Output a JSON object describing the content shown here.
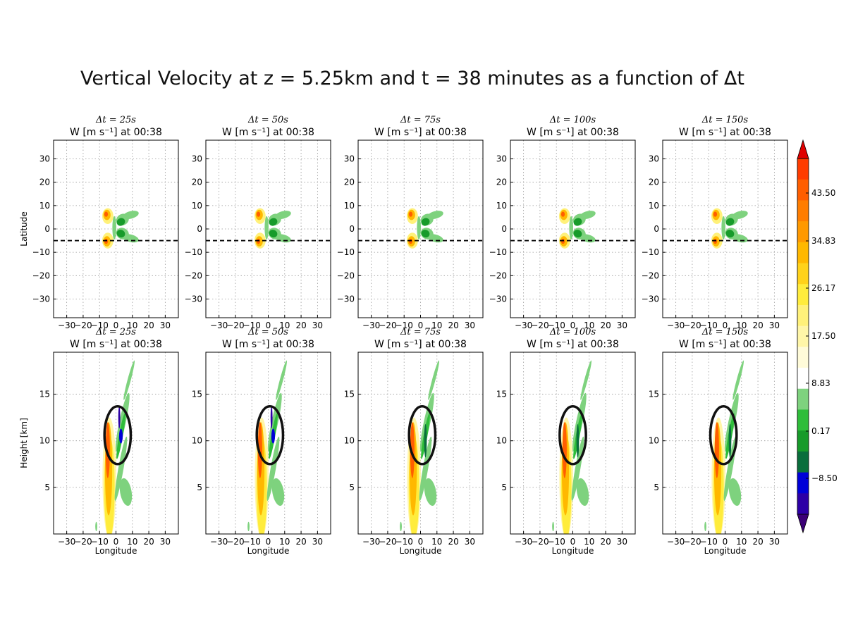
{
  "title": "Vertical Velocity at z = 5.25km and  t = 38 minutes as a function of Δt",
  "colors": {
    "levels": [
      "#3b0076",
      "#2d00a6",
      "#0000d8",
      "#0a6e3c",
      "#179b2a",
      "#2ebd3a",
      "#7ed27e",
      "#ffffff",
      "#fffbd9",
      "#fff6a8",
      "#fff17a",
      "#ffec3c",
      "#ffd21a",
      "#ffb800",
      "#ff9900",
      "#ff7d00",
      "#ff5e00",
      "#ff3c00",
      "#e00000"
    ],
    "circle": "#111111",
    "dash": "#000000"
  },
  "chart_data": [
    {
      "type": "heatmap",
      "row": "top",
      "subtitle": "Δt = 25s",
      "title": "W [m s⁻¹] at 00:38",
      "xlabel": "",
      "ylabel": "Latitude",
      "xlim": [
        -38,
        38
      ],
      "ylim": [
        -38,
        38
      ],
      "xticks": [
        "−30",
        "−20",
        "−10",
        "0",
        "10",
        "20",
        "30"
      ],
      "yticks": [
        "30",
        "20",
        "10",
        "0",
        "−10",
        "−20",
        "−30"
      ],
      "grid": true,
      "dashed_line_y": -5
    },
    {
      "type": "heatmap",
      "row": "top",
      "subtitle": "Δt = 50s",
      "title": "W [m s⁻¹] at 00:38",
      "xlabel": "",
      "ylabel": "",
      "xlim": [
        -38,
        38
      ],
      "ylim": [
        -38,
        38
      ],
      "xticks": [
        "−30",
        "−20",
        "−10",
        "0",
        "10",
        "20",
        "30"
      ],
      "yticks": [
        "30",
        "20",
        "10",
        "0",
        "−10",
        "−20",
        "−30"
      ],
      "grid": true,
      "dashed_line_y": -5
    },
    {
      "type": "heatmap",
      "row": "top",
      "subtitle": "Δt = 75s",
      "title": "W [m s⁻¹] at 00:38",
      "xlabel": "",
      "ylabel": "",
      "xlim": [
        -38,
        38
      ],
      "ylim": [
        -38,
        38
      ],
      "xticks": [
        "−30",
        "−20",
        "−10",
        "0",
        "10",
        "20",
        "30"
      ],
      "yticks": [
        "30",
        "20",
        "10",
        "0",
        "−10",
        "−20",
        "−30"
      ],
      "grid": true,
      "dashed_line_y": -5
    },
    {
      "type": "heatmap",
      "row": "top",
      "subtitle": "Δt = 100s",
      "title": "W [m s⁻¹] at 00:38",
      "xlabel": "",
      "ylabel": "",
      "xlim": [
        -38,
        38
      ],
      "ylim": [
        -38,
        38
      ],
      "xticks": [
        "−30",
        "−20",
        "−10",
        "0",
        "10",
        "20",
        "30"
      ],
      "yticks": [
        "30",
        "20",
        "10",
        "0",
        "−10",
        "−20",
        "−30"
      ],
      "grid": true,
      "dashed_line_y": -5
    },
    {
      "type": "heatmap",
      "row": "top",
      "subtitle": "Δt = 150s",
      "title": "W [m s⁻¹] at 00:38",
      "xlabel": "",
      "ylabel": "",
      "xlim": [
        -38,
        38
      ],
      "ylim": [
        -38,
        38
      ],
      "xticks": [
        "−30",
        "−20",
        "−10",
        "0",
        "10",
        "20",
        "30"
      ],
      "yticks": [
        "30",
        "20",
        "10",
        "0",
        "−10",
        "−20",
        "−30"
      ],
      "grid": true,
      "dashed_line_y": -5
    },
    {
      "type": "heatmap",
      "row": "bottom",
      "subtitle": "Δt = 25s",
      "title": "W [m s⁻¹] at 00:38",
      "xlabel": "Longitude",
      "ylabel": "Height [km]",
      "xlim": [
        -38,
        38
      ],
      "ylim": [
        0,
        19.5
      ],
      "xticks": [
        "−30",
        "−20",
        "−10",
        "0",
        "10",
        "20",
        "30"
      ],
      "yticks": [
        "15",
        "10",
        "5"
      ],
      "grid": true,
      "circle": {
        "x": 1,
        "y": 10.6,
        "rx": 8,
        "ry": 3.1
      }
    },
    {
      "type": "heatmap",
      "row": "bottom",
      "subtitle": "Δt = 50s",
      "title": "W [m s⁻¹] at 00:38",
      "xlabel": "Longitude",
      "ylabel": "",
      "xlim": [
        -38,
        38
      ],
      "ylim": [
        0,
        19.5
      ],
      "xticks": [
        "−30",
        "−20",
        "−10",
        "0",
        "10",
        "20",
        "30"
      ],
      "yticks": [
        "15",
        "10",
        "5"
      ],
      "grid": true,
      "circle": {
        "x": 1,
        "y": 10.6,
        "rx": 8,
        "ry": 3.1
      }
    },
    {
      "type": "heatmap",
      "row": "bottom",
      "subtitle": "Δt = 75s",
      "title": "W [m s⁻¹] at 00:38",
      "xlabel": "Longitude",
      "ylabel": "",
      "xlim": [
        -38,
        38
      ],
      "ylim": [
        0,
        19.5
      ],
      "xticks": [
        "−30",
        "−20",
        "−10",
        "0",
        "10",
        "20",
        "30"
      ],
      "yticks": [
        "15",
        "10",
        "5"
      ],
      "grid": true,
      "circle": {
        "x": 1,
        "y": 10.6,
        "rx": 8,
        "ry": 3.1
      }
    },
    {
      "type": "heatmap",
      "row": "bottom",
      "subtitle": "Δt = 100s",
      "title": "W [m s⁻¹] at 00:38",
      "xlabel": "Longitude",
      "ylabel": "",
      "xlim": [
        -38,
        38
      ],
      "ylim": [
        0,
        19.5
      ],
      "xticks": [
        "−30",
        "−20",
        "−10",
        "0",
        "10",
        "20",
        "30"
      ],
      "yticks": [
        "15",
        "10",
        "5"
      ],
      "grid": true,
      "circle": {
        "x": 0,
        "y": 10.6,
        "rx": 8,
        "ry": 3.1
      }
    },
    {
      "type": "heatmap",
      "row": "bottom",
      "subtitle": "Δt = 150s",
      "title": "W [m s⁻¹] at 00:38",
      "xlabel": "Longitude",
      "ylabel": "",
      "xlim": [
        -38,
        38
      ],
      "ylim": [
        0,
        19.5
      ],
      "xticks": [
        "−30",
        "−20",
        "−10",
        "0",
        "10",
        "20",
        "30"
      ],
      "yticks": [
        "15",
        "10",
        "5"
      ],
      "grid": true,
      "circle": {
        "x": -1,
        "y": 10.6,
        "rx": 8,
        "ry": 3.1
      }
    }
  ],
  "colorbar": {
    "ticks": [
      "43.50",
      "34.83",
      "26.17",
      "17.50",
      "8.83",
      "0.17",
      "−8.50"
    ]
  }
}
